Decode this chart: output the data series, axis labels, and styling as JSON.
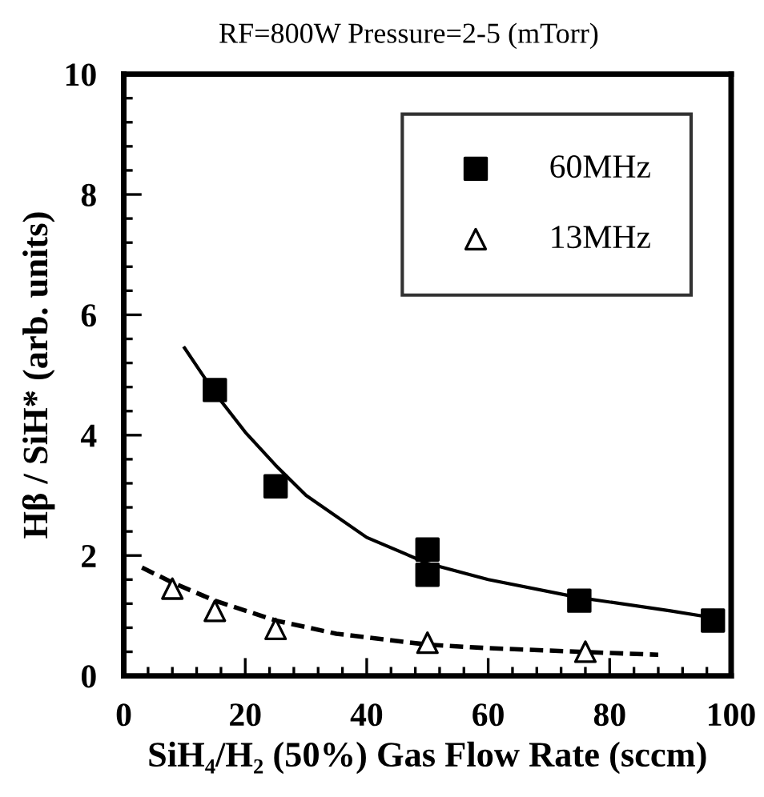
{
  "chart_data": {
    "type": "scatter",
    "title": "RF=800W Pressure=2-5 (mTorr)",
    "xlabel": "SiH₄/H₂ (50%) Gas Flow Rate (sccm)",
    "ylabel": "Hβ / SiH* (arb. units)",
    "xlim": [
      0,
      100
    ],
    "ylim": [
      0,
      10
    ],
    "xticks": [
      0,
      20,
      40,
      60,
      80,
      100
    ],
    "yticks": [
      0,
      2,
      4,
      6,
      8,
      10
    ],
    "grid": false,
    "legend": "top right",
    "series": [
      {
        "name": "60MHz",
        "marker": "square",
        "color": "#000000",
        "x": [
          15,
          25,
          50,
          50,
          75,
          97
        ],
        "values": [
          4.75,
          3.15,
          2.1,
          1.68,
          1.25,
          0.92
        ]
      },
      {
        "name": "13MHz",
        "marker": "triangle",
        "color": "#000000",
        "x": [
          8,
          15,
          25,
          50,
          76
        ],
        "values": [
          1.45,
          1.08,
          0.78,
          0.55,
          0.4
        ]
      },
      {
        "type": "line",
        "line_style": "solid",
        "color": "#000000",
        "x": [
          10,
          15,
          20,
          25,
          30,
          40,
          50,
          60,
          75,
          90,
          98
        ],
        "values": [
          5.45,
          4.7,
          4.05,
          3.5,
          3.0,
          2.3,
          1.87,
          1.6,
          1.3,
          1.08,
          0.95
        ]
      },
      {
        "type": "line",
        "line_style": "dashed",
        "color": "#000000",
        "x": [
          3,
          8,
          15,
          25,
          35,
          50,
          60,
          75,
          88
        ],
        "values": [
          1.8,
          1.55,
          1.25,
          0.92,
          0.7,
          0.52,
          0.46,
          0.4,
          0.35
        ]
      }
    ]
  }
}
